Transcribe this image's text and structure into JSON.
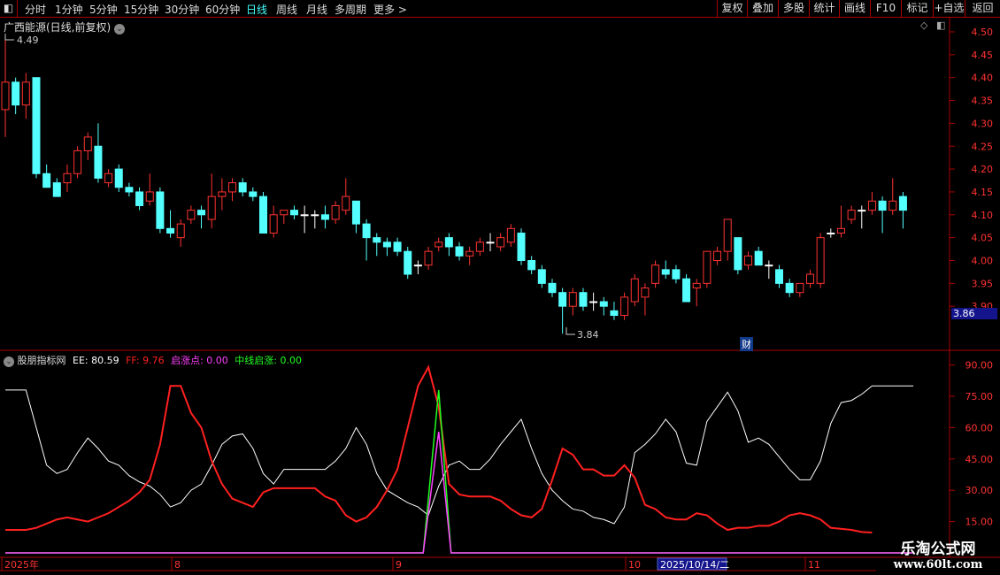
{
  "toolbar": {
    "periods": [
      "分时",
      "1分钟",
      "5分钟",
      "15分钟",
      "30分钟",
      "60分钟",
      "日线",
      "周线",
      "月线",
      "多周期",
      "更多 >"
    ],
    "active": "日线",
    "right_buttons": [
      "复权",
      "叠加",
      "多股",
      "统计",
      "画线",
      "F10",
      "标记",
      "+自选",
      "返回"
    ]
  },
  "main": {
    "title": "广西能源(日线,前复权)",
    "price_ticks": [
      "4.50",
      "4.45",
      "4.40",
      "4.35",
      "4.30",
      "4.25",
      "4.20",
      "4.15",
      "4.10",
      "4.05",
      "4.00",
      "3.95",
      "3.90"
    ],
    "current_price": "3.86",
    "high_marker": "4.49",
    "low_marker": "3.84",
    "badge": "财"
  },
  "indicator": {
    "name": "股朋指标网",
    "ee_label": "EE: 80.59",
    "ff_label": "FF: 9.76",
    "qzd_label": "启涨点: 0.00",
    "zx_label": "中线启涨: 0.00",
    "ticks": [
      "90.00",
      "75.00",
      "60.00",
      "45.00",
      "30.00",
      "15.00"
    ]
  },
  "date_axis": {
    "labels": [
      "2025年",
      "8",
      "9",
      "10",
      "11"
    ],
    "cursor_date": "2025/10/14/二"
  },
  "watermark": {
    "line1": "乐淘公式网",
    "line2": "www.60lt.com"
  },
  "colors": {
    "up": "#ff3232",
    "down": "#54ffff",
    "ee": "#ffffff",
    "ff": "#ff2020",
    "qzd": "#ff40ff",
    "zx": "#20ff20",
    "frame": "#aa0000"
  },
  "chart_data": {
    "type": "candlestick",
    "ylim": [
      3.86,
      4.52
    ],
    "candles_ohlc": [
      [
        4.33,
        4.49,
        4.27,
        4.39
      ],
      [
        4.39,
        4.4,
        4.32,
        4.34
      ],
      [
        4.34,
        4.41,
        4.31,
        4.39
      ],
      [
        4.4,
        4.4,
        4.18,
        4.19
      ],
      [
        4.19,
        4.21,
        4.17,
        4.16
      ],
      [
        4.17,
        4.18,
        4.14,
        4.14
      ],
      [
        4.17,
        4.21,
        4.15,
        4.19
      ],
      [
        4.19,
        4.25,
        4.18,
        4.24
      ],
      [
        4.24,
        4.28,
        4.22,
        4.27
      ],
      [
        4.25,
        4.3,
        4.17,
        4.18
      ],
      [
        4.17,
        4.2,
        4.16,
        4.19
      ],
      [
        4.2,
        4.21,
        4.15,
        4.16
      ],
      [
        4.16,
        4.17,
        4.14,
        4.15
      ],
      [
        4.15,
        4.16,
        4.11,
        4.12
      ],
      [
        4.13,
        4.19,
        4.12,
        4.15
      ],
      [
        4.15,
        4.16,
        4.06,
        4.07
      ],
      [
        4.07,
        4.11,
        4.05,
        4.06
      ],
      [
        4.05,
        4.09,
        4.03,
        4.08
      ],
      [
        4.09,
        4.12,
        4.08,
        4.11
      ],
      [
        4.11,
        4.12,
        4.07,
        4.1
      ],
      [
        4.09,
        4.19,
        4.07,
        4.14
      ],
      [
        4.14,
        4.18,
        4.11,
        4.15
      ],
      [
        4.15,
        4.18,
        4.13,
        4.17
      ],
      [
        4.17,
        4.18,
        4.14,
        4.15
      ],
      [
        4.15,
        4.16,
        4.13,
        4.14
      ],
      [
        4.14,
        4.15,
        4.06,
        4.06
      ],
      [
        4.06,
        4.12,
        4.05,
        4.1
      ],
      [
        4.1,
        4.11,
        4.08,
        4.11
      ],
      [
        4.11,
        4.12,
        4.09,
        4.1
      ],
      [
        4.1,
        4.12,
        4.06,
        4.1
      ],
      [
        4.1,
        4.11,
        4.07,
        4.1
      ],
      [
        4.1,
        4.12,
        4.07,
        4.09
      ],
      [
        4.09,
        4.13,
        4.08,
        4.12
      ],
      [
        4.11,
        4.18,
        4.1,
        4.14
      ],
      [
        4.13,
        4.13,
        4.06,
        4.08
      ],
      [
        4.08,
        4.09,
        4.0,
        4.05
      ],
      [
        4.05,
        4.06,
        4.01,
        4.04
      ],
      [
        4.04,
        4.05,
        4.01,
        4.03
      ],
      [
        4.04,
        4.05,
        4.01,
        4.02
      ],
      [
        4.02,
        4.03,
        3.96,
        3.97
      ],
      [
        3.99,
        4.0,
        3.97,
        3.99
      ],
      [
        3.99,
        4.03,
        3.98,
        4.02
      ],
      [
        4.03,
        4.05,
        4.02,
        4.04
      ],
      [
        4.05,
        4.06,
        4.01,
        4.03
      ],
      [
        4.03,
        4.04,
        4.0,
        4.01
      ],
      [
        4.01,
        4.03,
        3.99,
        4.02
      ],
      [
        4.02,
        4.05,
        4.01,
        4.04
      ],
      [
        4.04,
        4.06,
        4.02,
        4.04
      ],
      [
        4.03,
        4.06,
        4.02,
        4.05
      ],
      [
        4.04,
        4.08,
        4.03,
        4.07
      ],
      [
        4.06,
        4.07,
        3.99,
        4.0
      ],
      [
        4.0,
        4.01,
        3.97,
        3.98
      ],
      [
        3.98,
        3.99,
        3.94,
        3.95
      ],
      [
        3.95,
        3.96,
        3.92,
        3.93
      ],
      [
        3.93,
        3.94,
        3.84,
        3.9
      ],
      [
        3.9,
        3.94,
        3.88,
        3.93
      ],
      [
        3.93,
        3.94,
        3.89,
        3.9
      ],
      [
        3.91,
        3.93,
        3.89,
        3.91
      ],
      [
        3.91,
        3.92,
        3.88,
        3.9
      ],
      [
        3.89,
        3.91,
        3.87,
        3.88
      ],
      [
        3.88,
        3.93,
        3.87,
        3.92
      ],
      [
        3.91,
        3.97,
        3.9,
        3.96
      ],
      [
        3.92,
        3.95,
        3.88,
        3.94
      ],
      [
        3.95,
        4.0,
        3.94,
        3.99
      ],
      [
        3.98,
        4.0,
        3.96,
        3.97
      ],
      [
        3.98,
        3.99,
        3.95,
        3.96
      ],
      [
        3.96,
        3.97,
        3.91,
        3.91
      ],
      [
        3.94,
        3.96,
        3.9,
        3.95
      ],
      [
        3.95,
        4.02,
        3.94,
        4.02
      ],
      [
        4.0,
        4.03,
        3.99,
        4.02
      ],
      [
        4.02,
        4.09,
        4.0,
        4.09
      ],
      [
        4.05,
        4.05,
        3.97,
        3.98
      ],
      [
        3.99,
        4.02,
        3.98,
        4.01
      ],
      [
        4.02,
        4.03,
        3.99,
        3.99
      ],
      [
        3.99,
        4.0,
        3.96,
        3.99
      ],
      [
        3.98,
        3.99,
        3.94,
        3.95
      ],
      [
        3.95,
        3.96,
        3.92,
        3.93
      ],
      [
        3.93,
        3.95,
        3.92,
        3.95
      ],
      [
        3.95,
        3.98,
        3.94,
        3.97
      ],
      [
        3.95,
        4.06,
        3.94,
        4.05
      ],
      [
        4.06,
        4.07,
        4.05,
        4.06
      ],
      [
        4.06,
        4.12,
        4.05,
        4.07
      ],
      [
        4.09,
        4.12,
        4.08,
        4.11
      ],
      [
        4.11,
        4.12,
        4.07,
        4.11
      ],
      [
        4.11,
        4.15,
        4.1,
        4.13
      ],
      [
        4.13,
        4.14,
        4.06,
        4.11
      ],
      [
        4.11,
        4.18,
        4.1,
        4.13
      ],
      [
        4.14,
        4.15,
        4.07,
        4.11
      ]
    ],
    "indicator": {
      "ylim": [
        0,
        95
      ],
      "EE": [
        [
          0,
          78
        ],
        [
          2,
          78
        ],
        [
          4,
          42
        ],
        [
          5,
          38
        ],
        [
          6,
          40
        ],
        [
          7,
          48
        ],
        [
          8,
          55
        ],
        [
          9,
          50
        ],
        [
          10,
          44
        ],
        [
          11,
          42
        ],
        [
          12,
          37
        ],
        [
          13,
          34
        ],
        [
          14,
          32
        ],
        [
          15,
          28
        ],
        [
          16,
          22
        ],
        [
          17,
          24
        ],
        [
          18,
          30
        ],
        [
          19,
          33
        ],
        [
          20,
          42
        ],
        [
          21,
          52
        ],
        [
          22,
          56
        ],
        [
          23,
          57
        ],
        [
          24,
          50
        ],
        [
          25,
          38
        ],
        [
          26,
          33
        ],
        [
          27,
          40
        ],
        [
          29,
          40
        ],
        [
          31,
          40
        ],
        [
          32,
          44
        ],
        [
          33,
          50
        ],
        [
          34,
          60
        ],
        [
          35,
          52
        ],
        [
          36,
          38
        ],
        [
          37,
          30
        ],
        [
          38,
          27
        ],
        [
          39,
          24
        ],
        [
          40,
          22
        ],
        [
          41,
          18
        ],
        [
          42,
          32
        ],
        [
          43,
          42
        ],
        [
          44,
          44
        ],
        [
          45,
          40
        ],
        [
          46,
          40
        ],
        [
          47,
          45
        ],
        [
          48,
          52
        ],
        [
          49,
          58
        ],
        [
          50,
          64
        ],
        [
          51,
          50
        ],
        [
          52,
          38
        ],
        [
          53,
          30
        ],
        [
          54,
          25
        ],
        [
          55,
          21
        ],
        [
          56,
          20
        ],
        [
          57,
          17
        ],
        [
          58,
          16
        ],
        [
          59,
          14
        ],
        [
          60,
          22
        ],
        [
          61,
          48
        ],
        [
          62,
          52
        ],
        [
          63,
          57
        ],
        [
          64,
          64
        ],
        [
          65,
          58
        ],
        [
          66,
          43
        ],
        [
          67,
          42
        ],
        [
          68,
          63
        ],
        [
          69,
          70
        ],
        [
          70,
          77
        ],
        [
          71,
          68
        ],
        [
          72,
          53
        ],
        [
          73,
          55
        ],
        [
          74,
          52
        ],
        [
          75,
          46
        ],
        [
          76,
          40
        ],
        [
          77,
          35
        ],
        [
          78,
          35
        ],
        [
          79,
          44
        ],
        [
          80,
          62
        ],
        [
          81,
          72
        ],
        [
          82,
          73
        ],
        [
          83,
          76
        ],
        [
          84,
          80
        ],
        [
          85,
          80
        ],
        [
          87,
          80
        ],
        [
          88,
          80
        ]
      ],
      "FF": [
        [
          0,
          11
        ],
        [
          2,
          11
        ],
        [
          3,
          12
        ],
        [
          4,
          14
        ],
        [
          5,
          16
        ],
        [
          6,
          17
        ],
        [
          7,
          16
        ],
        [
          8,
          15
        ],
        [
          9,
          17
        ],
        [
          10,
          19
        ],
        [
          11,
          22
        ],
        [
          12,
          25
        ],
        [
          13,
          29
        ],
        [
          14,
          35
        ],
        [
          15,
          52
        ],
        [
          16,
          80
        ],
        [
          17,
          80
        ],
        [
          18,
          67
        ],
        [
          19,
          60
        ],
        [
          20,
          44
        ],
        [
          21,
          33
        ],
        [
          22,
          26
        ],
        [
          23,
          24
        ],
        [
          24,
          22
        ],
        [
          25,
          29
        ],
        [
          26,
          31
        ],
        [
          28,
          31
        ],
        [
          30,
          31
        ],
        [
          31,
          27
        ],
        [
          32,
          25
        ],
        [
          33,
          18
        ],
        [
          34,
          15
        ],
        [
          35,
          17
        ],
        [
          36,
          22
        ],
        [
          37,
          30
        ],
        [
          38,
          40
        ],
        [
          39,
          60
        ],
        [
          40,
          80
        ],
        [
          41,
          89
        ],
        [
          42,
          70
        ],
        [
          43,
          33
        ],
        [
          44,
          28
        ],
        [
          45,
          27
        ],
        [
          47,
          27
        ],
        [
          48,
          25
        ],
        [
          49,
          21
        ],
        [
          50,
          18
        ],
        [
          51,
          17
        ],
        [
          52,
          21
        ],
        [
          53,
          35
        ],
        [
          54,
          50
        ],
        [
          55,
          47
        ],
        [
          56,
          40
        ],
        [
          57,
          40
        ],
        [
          58,
          37
        ],
        [
          59,
          37
        ],
        [
          60,
          42
        ],
        [
          61,
          36
        ],
        [
          62,
          23
        ],
        [
          63,
          21
        ],
        [
          64,
          17
        ],
        [
          65,
          16
        ],
        [
          66,
          16
        ],
        [
          67,
          19
        ],
        [
          68,
          18
        ],
        [
          69,
          14
        ],
        [
          70,
          11
        ],
        [
          71,
          12
        ],
        [
          72,
          12
        ],
        [
          73,
          13
        ],
        [
          74,
          13
        ],
        [
          75,
          15
        ],
        [
          76,
          18
        ],
        [
          77,
          19
        ],
        [
          78,
          18
        ],
        [
          79,
          16
        ],
        [
          80,
          12
        ],
        [
          82,
          11
        ],
        [
          83,
          10
        ],
        [
          84,
          9.76
        ]
      ],
      "QZD": [
        [
          0,
          0
        ],
        [
          40.5,
          0
        ],
        [
          42,
          58
        ],
        [
          43.2,
          0
        ],
        [
          88,
          0
        ]
      ],
      "ZX": [
        [
          0,
          0
        ],
        [
          40.5,
          0
        ],
        [
          42,
          78
        ],
        [
          43.2,
          0
        ],
        [
          88,
          0
        ]
      ]
    }
  }
}
